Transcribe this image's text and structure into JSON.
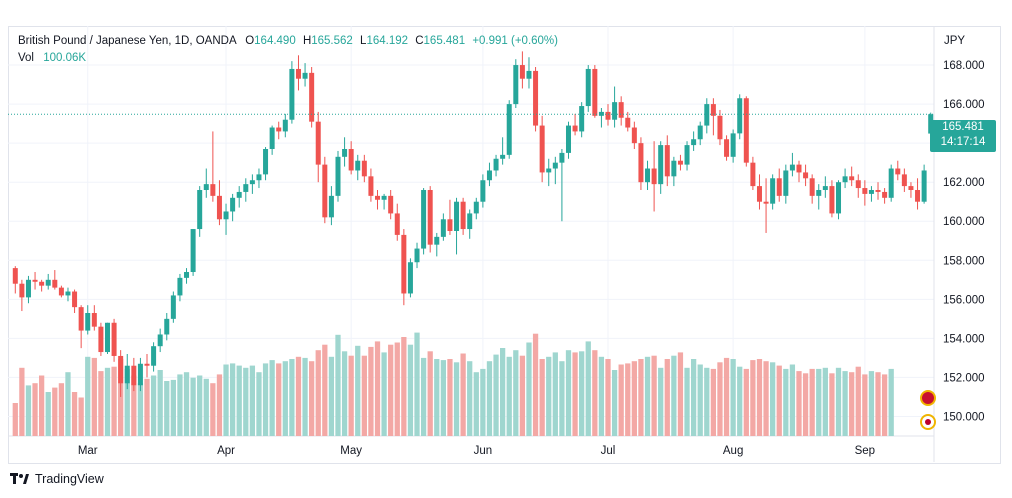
{
  "header": {
    "symbol": "British Pound / Japanese Yen, 1D, OANDA",
    "o_label": "O",
    "o_value": "164.490",
    "h_label": "H",
    "h_value": "165.562",
    "l_label": "L",
    "l_value": "164.192",
    "c_label": "C",
    "c_value": "165.481",
    "change": "+0.991 (+0.60%)",
    "vol_label": "Vol",
    "vol_value": "100.06K"
  },
  "price_box": {
    "price": "165.481",
    "countdown": "14:17:14"
  },
  "branding": {
    "name": "TradingView"
  },
  "colors": {
    "up": "#26a69a",
    "down": "#ef5350",
    "up_vol": "#9fd6cf",
    "down_vol": "#f3a8a5",
    "grid": "#f0f3fa",
    "text": "#131722"
  },
  "chart_data": {
    "type": "candlestick",
    "currency": "JPY",
    "ylim": [
      149,
      170
    ],
    "y_ticks": [
      "150.000",
      "152.000",
      "154.000",
      "156.000",
      "158.000",
      "160.000",
      "162.000",
      "164.000",
      "166.000",
      "168.000"
    ],
    "x_ticks": [
      {
        "label": "Mar",
        "index": 11
      },
      {
        "label": "Apr",
        "index": 32
      },
      {
        "label": "May",
        "index": 51
      },
      {
        "label": "Jun",
        "index": 71
      },
      {
        "label": "Jul",
        "index": 90
      },
      {
        "label": "Aug",
        "index": 109
      },
      {
        "label": "Sep",
        "index": 129
      }
    ],
    "last_price": 165.481,
    "ohlc": [
      [
        157.6,
        157.7,
        156.3,
        156.8
      ],
      [
        156.8,
        157.0,
        155.4,
        156.1
      ],
      [
        156.1,
        157.2,
        155.8,
        157.0
      ],
      [
        157.0,
        157.4,
        156.5,
        156.9
      ],
      [
        156.9,
        157.0,
        156.4,
        156.7
      ],
      [
        156.7,
        157.3,
        156.5,
        157.0
      ],
      [
        157.0,
        157.5,
        156.5,
        156.6
      ],
      [
        156.6,
        156.7,
        156.1,
        156.2
      ],
      [
        156.2,
        156.6,
        155.9,
        156.4
      ],
      [
        156.4,
        156.5,
        155.3,
        155.6
      ],
      [
        155.6,
        155.7,
        153.5,
        154.4
      ],
      [
        154.4,
        155.7,
        154.2,
        155.3
      ],
      [
        155.3,
        155.7,
        154.4,
        154.6
      ],
      [
        154.6,
        154.8,
        153.1,
        153.3
      ],
      [
        153.3,
        154.8,
        153.2,
        154.8
      ],
      [
        154.8,
        155.0,
        152.8,
        153.1
      ],
      [
        153.1,
        153.4,
        151.0,
        151.7
      ],
      [
        151.7,
        153.2,
        151.4,
        152.6
      ],
      [
        152.6,
        153.0,
        151.3,
        151.6
      ],
      [
        151.6,
        153.0,
        151.3,
        152.7
      ],
      [
        152.7,
        153.2,
        152.0,
        152.6
      ],
      [
        152.6,
        153.8,
        152.3,
        153.6
      ],
      [
        153.6,
        154.5,
        153.3,
        154.2
      ],
      [
        154.2,
        155.3,
        153.9,
        155.0
      ],
      [
        155.0,
        156.4,
        154.8,
        156.2
      ],
      [
        156.2,
        157.3,
        155.9,
        157.1
      ],
      [
        157.1,
        157.6,
        156.8,
        157.4
      ],
      [
        157.4,
        159.6,
        157.2,
        159.6
      ],
      [
        159.6,
        161.8,
        159.2,
        161.6
      ],
      [
        161.6,
        162.7,
        161.2,
        161.9
      ],
      [
        161.9,
        164.6,
        161.0,
        161.3
      ],
      [
        161.3,
        162.1,
        159.8,
        160.1
      ],
      [
        160.1,
        160.9,
        159.3,
        160.5
      ],
      [
        160.5,
        161.4,
        160.0,
        161.2
      ],
      [
        161.2,
        161.8,
        160.7,
        161.5
      ],
      [
        161.5,
        162.2,
        161.0,
        161.9
      ],
      [
        161.9,
        162.4,
        161.4,
        162.1
      ],
      [
        162.1,
        162.7,
        161.7,
        162.4
      ],
      [
        162.4,
        163.8,
        162.1,
        163.7
      ],
      [
        163.7,
        164.9,
        163.4,
        164.8
      ],
      [
        164.8,
        165.1,
        164.2,
        164.6
      ],
      [
        164.6,
        165.5,
        164.3,
        165.2
      ],
      [
        165.2,
        168.2,
        165.0,
        167.8
      ],
      [
        167.8,
        168.5,
        166.7,
        167.3
      ],
      [
        167.3,
        168.1,
        166.9,
        167.6
      ],
      [
        167.6,
        167.9,
        164.8,
        165.1
      ],
      [
        165.1,
        165.6,
        162.0,
        162.9
      ],
      [
        162.9,
        163.3,
        159.9,
        160.2
      ],
      [
        160.2,
        161.8,
        159.8,
        161.3
      ],
      [
        161.3,
        163.6,
        161.0,
        163.3
      ],
      [
        163.3,
        164.3,
        162.8,
        163.7
      ],
      [
        163.7,
        164.1,
        162.4,
        162.6
      ],
      [
        162.6,
        163.4,
        162.1,
        163.1
      ],
      [
        163.1,
        163.4,
        162.0,
        162.3
      ],
      [
        162.3,
        162.7,
        161.0,
        161.3
      ],
      [
        161.3,
        161.6,
        160.6,
        161.1
      ],
      [
        161.1,
        161.4,
        160.6,
        161.3
      ],
      [
        161.3,
        161.6,
        160.1,
        160.4
      ],
      [
        160.4,
        160.9,
        159.0,
        159.3
      ],
      [
        159.3,
        159.6,
        155.7,
        156.3
      ],
      [
        156.3,
        158.1,
        156.1,
        157.9
      ],
      [
        157.9,
        158.9,
        157.6,
        158.6
      ],
      [
        158.6,
        161.7,
        158.3,
        161.6
      ],
      [
        161.6,
        161.8,
        158.4,
        158.8
      ],
      [
        158.8,
        159.4,
        158.2,
        159.2
      ],
      [
        159.2,
        160.4,
        159.0,
        160.1
      ],
      [
        160.1,
        161.1,
        159.3,
        159.5
      ],
      [
        159.5,
        161.2,
        158.3,
        161.0
      ],
      [
        161.0,
        161.2,
        159.3,
        159.6
      ],
      [
        159.6,
        160.6,
        159.1,
        160.4
      ],
      [
        160.4,
        161.2,
        160.1,
        161.0
      ],
      [
        161.0,
        162.4,
        160.7,
        162.1
      ],
      [
        162.1,
        163.0,
        161.8,
        162.6
      ],
      [
        162.6,
        163.4,
        162.3,
        163.2
      ],
      [
        163.2,
        164.3,
        162.9,
        163.4
      ],
      [
        163.4,
        166.2,
        163.2,
        166.0
      ],
      [
        166.0,
        168.3,
        165.8,
        168.0
      ],
      [
        168.0,
        168.7,
        166.8,
        167.3
      ],
      [
        167.3,
        168.4,
        166.8,
        167.7
      ],
      [
        167.7,
        167.9,
        164.6,
        164.9
      ],
      [
        164.9,
        165.4,
        162.0,
        162.5
      ],
      [
        162.5,
        163.2,
        161.8,
        162.7
      ],
      [
        162.7,
        163.3,
        161.9,
        163.0
      ],
      [
        163.0,
        163.7,
        160.0,
        163.5
      ],
      [
        163.5,
        165.1,
        163.2,
        164.9
      ],
      [
        164.9,
        165.5,
        164.4,
        164.6
      ],
      [
        164.6,
        166.1,
        164.3,
        165.9
      ],
      [
        165.9,
        168.0,
        165.6,
        167.8
      ],
      [
        167.8,
        168.0,
        165.3,
        165.4
      ],
      [
        165.4,
        165.8,
        164.8,
        165.6
      ],
      [
        165.6,
        166.0,
        164.9,
        165.2
      ],
      [
        165.2,
        166.9,
        164.8,
        166.1
      ],
      [
        166.1,
        166.4,
        164.9,
        165.3
      ],
      [
        165.3,
        165.6,
        164.6,
        164.8
      ],
      [
        164.8,
        165.1,
        163.7,
        164.0
      ],
      [
        164.0,
        164.3,
        161.6,
        162.0
      ],
      [
        162.0,
        163.1,
        161.6,
        162.7
      ],
      [
        162.7,
        164.1,
        160.5,
        161.9
      ],
      [
        161.9,
        164.1,
        161.4,
        163.9
      ],
      [
        163.9,
        164.4,
        161.8,
        162.3
      ],
      [
        162.3,
        163.3,
        161.8,
        163.1
      ],
      [
        163.1,
        163.4,
        162.6,
        162.9
      ],
      [
        162.9,
        164.1,
        162.6,
        163.9
      ],
      [
        163.9,
        164.6,
        163.6,
        164.2
      ],
      [
        164.2,
        165.1,
        163.9,
        164.9
      ],
      [
        164.9,
        166.3,
        164.5,
        166.0
      ],
      [
        166.0,
        166.3,
        164.4,
        165.4
      ],
      [
        165.4,
        165.7,
        163.9,
        164.2
      ],
      [
        164.2,
        164.4,
        163.1,
        163.3
      ],
      [
        163.3,
        164.7,
        163.0,
        164.5
      ],
      [
        164.5,
        166.5,
        164.2,
        166.3
      ],
      [
        166.3,
        166.4,
        162.8,
        163.0
      ],
      [
        163.0,
        163.3,
        161.6,
        161.8
      ],
      [
        161.8,
        162.4,
        160.6,
        161.0
      ],
      [
        161.0,
        162.2,
        159.4,
        160.9
      ],
      [
        160.9,
        162.4,
        160.6,
        162.2
      ],
      [
        162.2,
        162.7,
        161.0,
        161.3
      ],
      [
        161.3,
        162.9,
        160.9,
        162.6
      ],
      [
        162.6,
        163.5,
        162.3,
        162.9
      ],
      [
        162.9,
        163.1,
        162.0,
        162.5
      ],
      [
        162.5,
        162.9,
        161.8,
        162.2
      ],
      [
        162.2,
        162.4,
        160.9,
        161.3
      ],
      [
        161.3,
        161.9,
        160.6,
        161.6
      ],
      [
        161.6,
        162.3,
        161.2,
        161.8
      ],
      [
        161.8,
        162.1,
        160.2,
        160.4
      ],
      [
        160.4,
        162.1,
        160.1,
        162.0
      ],
      [
        162.0,
        162.7,
        161.7,
        162.3
      ],
      [
        162.3,
        162.8,
        161.8,
        162.1
      ],
      [
        162.1,
        162.4,
        161.2,
        161.7
      ],
      [
        161.7,
        162.1,
        160.8,
        161.4
      ]
    ],
    "ohlc_tail": [
      [
        161.4,
        161.8,
        161.0,
        161.6
      ],
      [
        161.6,
        162.0,
        161.1,
        161.5
      ],
      [
        161.5,
        161.7,
        160.9,
        161.2
      ],
      [
        161.2,
        162.9,
        161.0,
        162.7
      ],
      [
        162.7,
        163.1,
        162.1,
        162.4
      ],
      [
        162.4,
        162.7,
        161.5,
        161.8
      ],
      [
        161.8,
        162.0,
        161.2,
        161.6
      ],
      [
        161.6,
        162.2,
        160.6,
        161.0
      ],
      [
        161.0,
        162.9,
        160.9,
        162.6
      ],
      [
        164.49,
        165.562,
        164.192,
        165.481
      ]
    ],
    "volume": [
      30,
      62,
      46,
      48,
      55,
      40,
      44,
      48,
      58,
      40,
      35,
      72,
      71,
      59,
      62,
      63,
      70,
      61,
      55,
      48,
      52,
      55,
      60,
      50,
      51,
      56,
      58,
      53,
      55,
      52,
      48,
      56,
      65,
      66,
      64,
      62,
      64,
      58,
      66,
      69,
      66,
      68,
      70,
      72,
      71,
      68,
      78,
      83,
      72,
      92,
      77,
      73,
      82,
      73,
      81,
      86,
      76,
      83,
      85,
      90,
      83,
      94,
      71,
      77,
      70,
      69,
      70,
      67,
      75,
      68,
      58,
      61,
      68,
      74,
      80,
      72,
      78,
      73,
      85,
      93,
      70,
      72,
      76,
      68,
      78,
      76,
      77,
      86,
      78,
      72,
      70,
      60,
      65,
      66,
      68,
      70,
      72,
      73,
      62,
      70,
      73,
      76,
      62,
      70,
      65,
      62,
      61,
      67,
      71,
      70,
      63,
      61,
      69,
      70,
      68,
      67,
      64,
      61,
      65,
      59,
      57,
      61,
      61,
      62,
      57,
      62,
      59,
      58,
      63,
      56,
      59,
      58,
      56,
      61
    ]
  }
}
